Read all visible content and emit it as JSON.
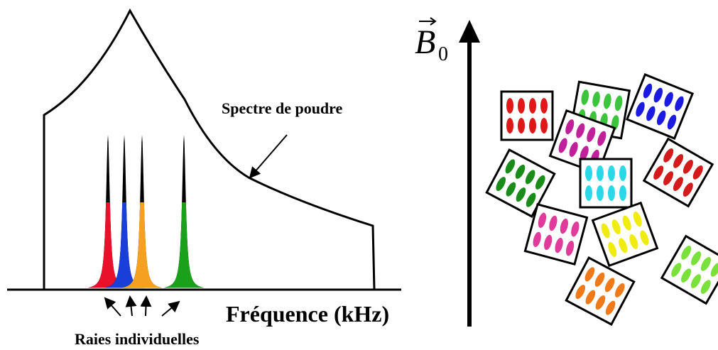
{
  "labels": {
    "powder": "Spectre de poudre",
    "xaxis": "Fréquence (kHz)",
    "lines": "Raies individuelles",
    "field": {
      "symbol": "B",
      "subscript": "0"
    }
  }
}
